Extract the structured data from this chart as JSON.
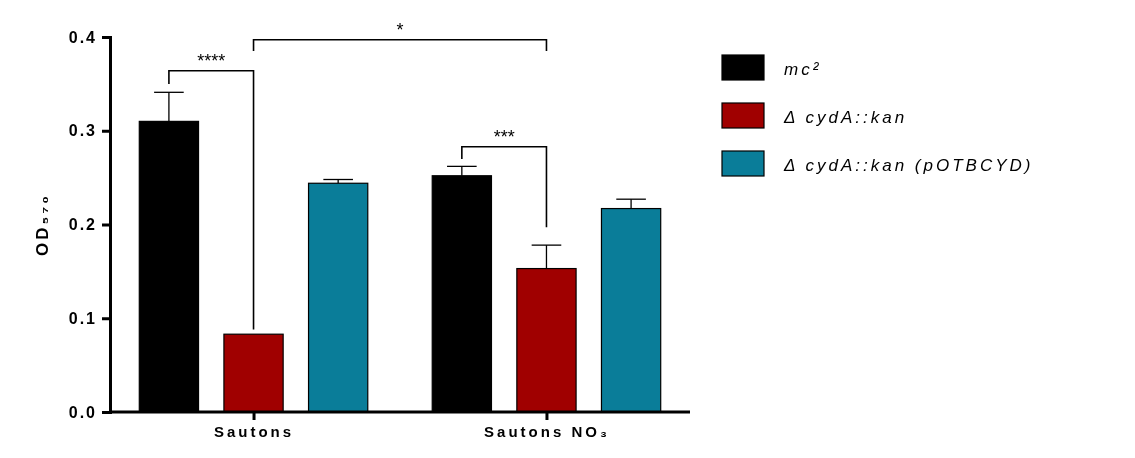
{
  "chart_data": {
    "type": "bar",
    "ylabel": "OD₅₇₀",
    "categories": [
      "Sautons",
      "Sautons NO₃"
    ],
    "series": [
      {
        "name": "mc²",
        "color": "#000000",
        "values": [
          0.31,
          0.252
        ],
        "errors": [
          0.031,
          0.01
        ]
      },
      {
        "name": "Δ cydA::kan",
        "color": "#a00000",
        "values": [
          0.083,
          0.153
        ],
        "errors": [
          null,
          0.025
        ]
      },
      {
        "name": "Δ cydA::kan (pOTBCYD)",
        "color": "#0a7d99",
        "values": [
          0.244,
          0.217
        ],
        "errors": [
          0.004,
          0.01
        ]
      }
    ],
    "ylim": [
      0,
      0.4
    ],
    "yticks": [
      {
        "value": 0,
        "label": "0.0"
      },
      0.1,
      0.2,
      0.3,
      0.4
    ],
    "legend": "right",
    "grid": false,
    "annotations": [
      "****",
      "*",
      "***"
    ]
  }
}
